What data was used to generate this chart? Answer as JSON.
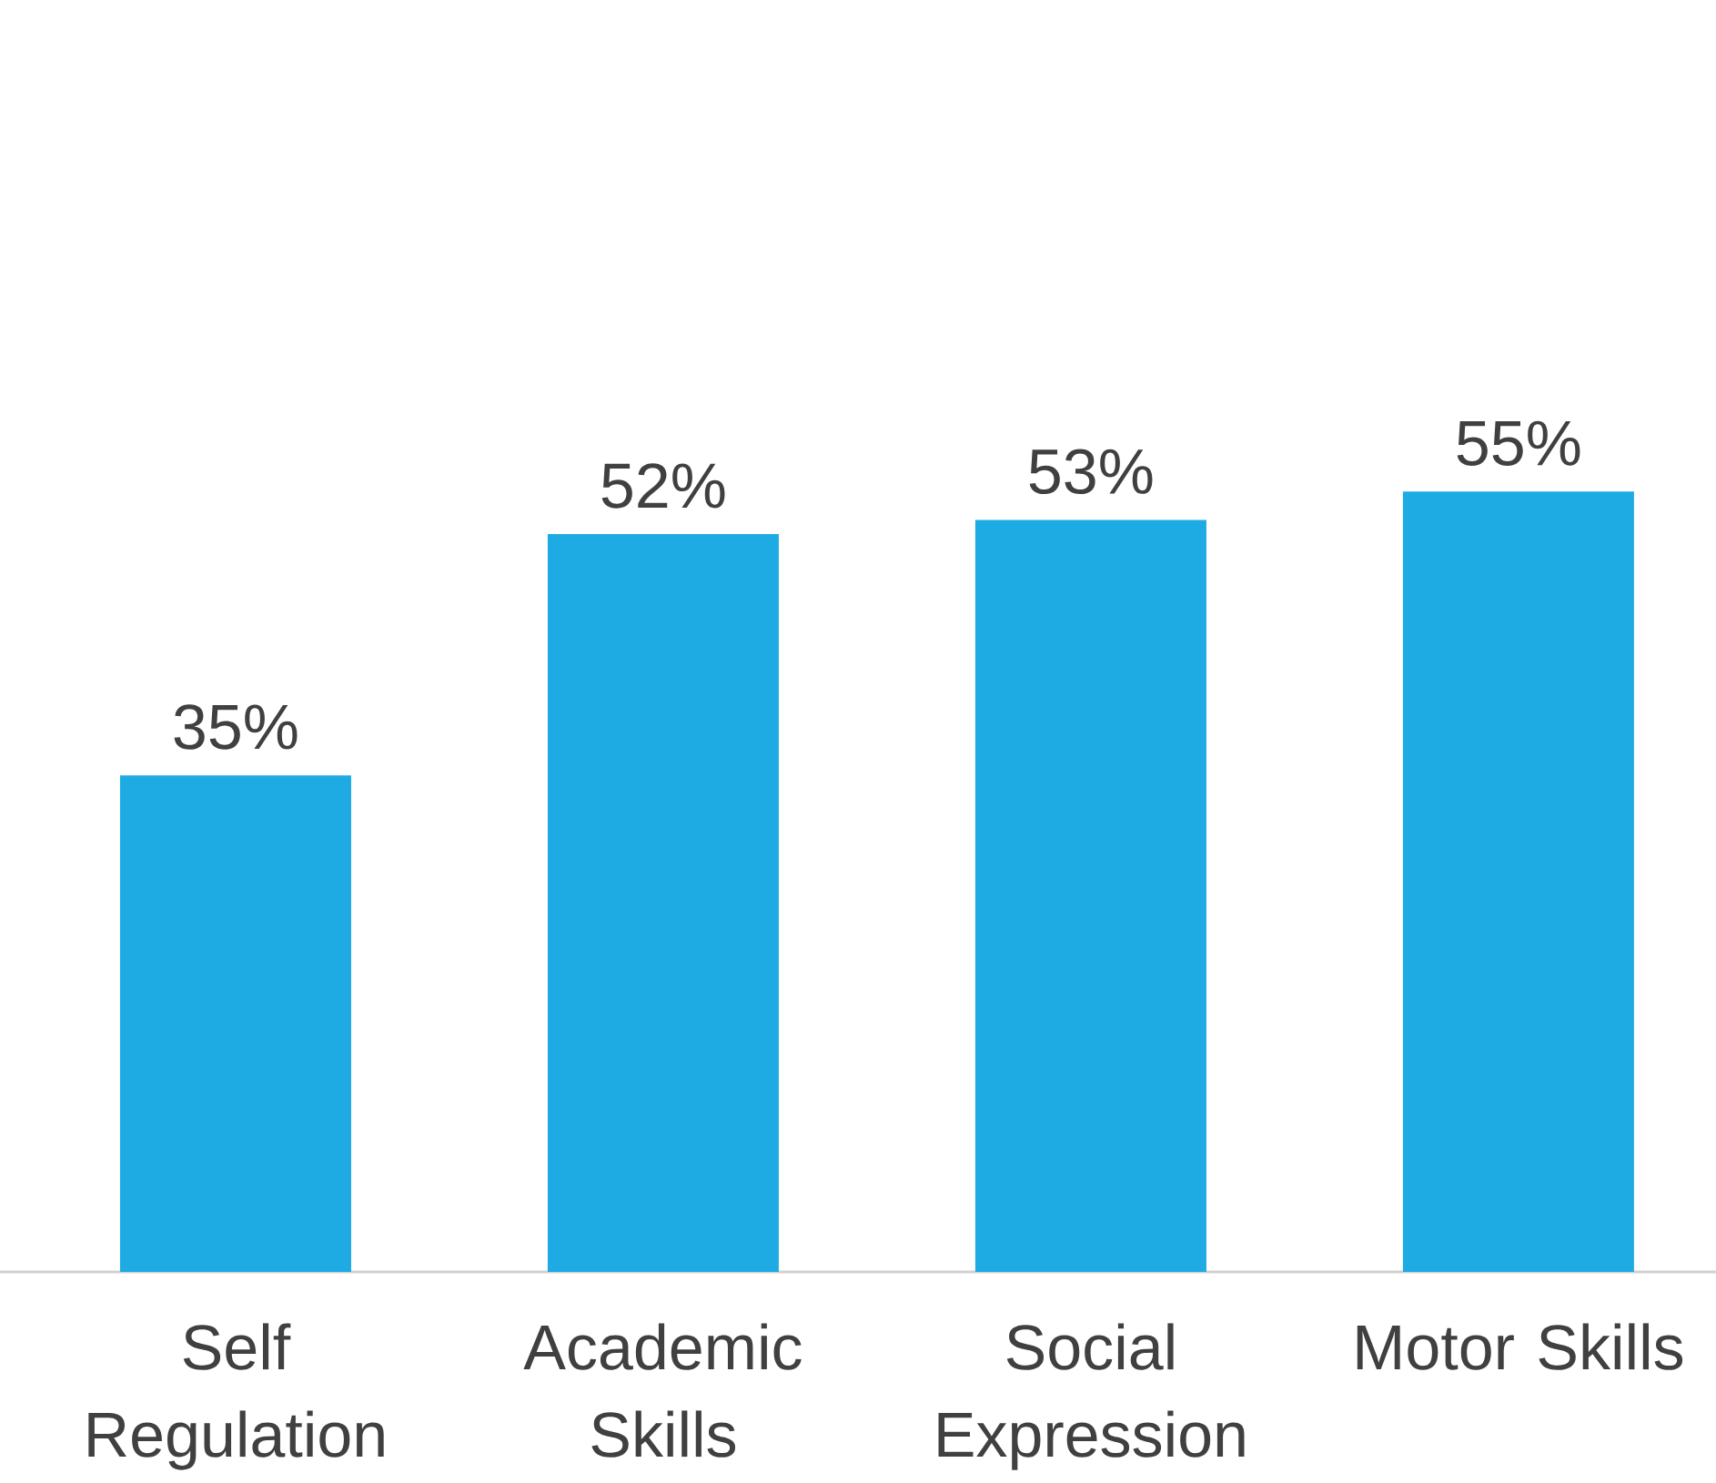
{
  "chart_data": {
    "type": "bar",
    "categories": [
      "Self Regulation",
      "Academic Skills",
      "Social Expression",
      "Motor Skills"
    ],
    "values": [
      35,
      52,
      53,
      55
    ],
    "value_labels": [
      "35%",
      "52%",
      "53%",
      "55%"
    ],
    "color": "#1eabe3"
  }
}
